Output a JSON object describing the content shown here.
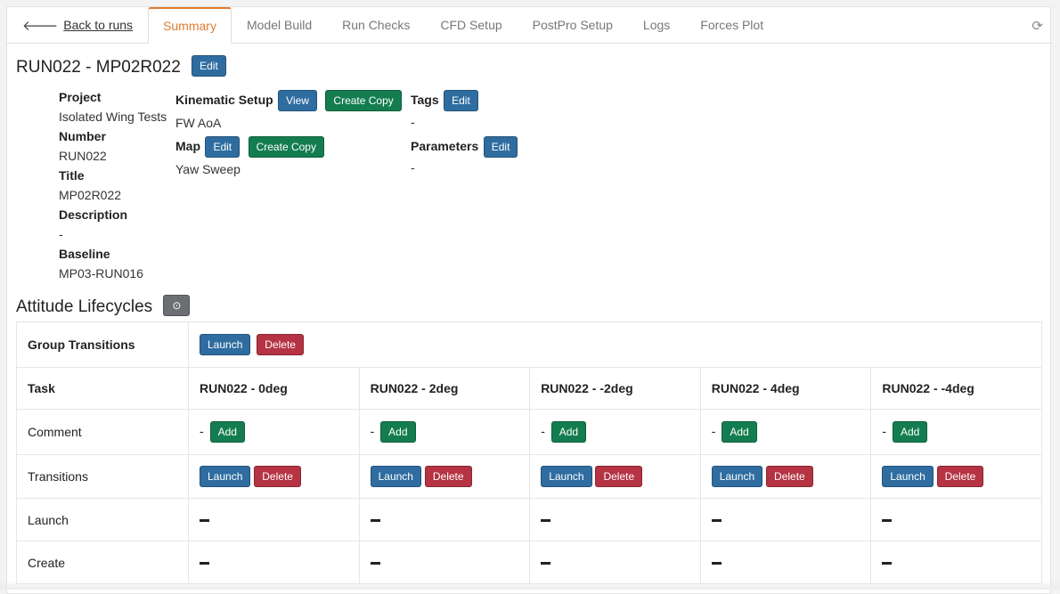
{
  "nav": {
    "back_label": "Back to runs",
    "tabs": [
      "Summary",
      "Model Build",
      "Run Checks",
      "CFD Setup",
      "PostPro Setup",
      "Logs",
      "Forces Plot"
    ],
    "active_tab": "Summary"
  },
  "run": {
    "title": "RUN022 - MP02R022",
    "edit_label": "Edit",
    "fields": [
      {
        "label": "Project",
        "value": "Isolated Wing Tests"
      },
      {
        "label": "Number",
        "value": "RUN022"
      },
      {
        "label": "Title",
        "value": "MP02R022"
      },
      {
        "label": "Description",
        "value": "-"
      },
      {
        "label": "Baseline",
        "value": "MP03-RUN016"
      }
    ],
    "kinematic_setup": {
      "label": "Kinematic Setup",
      "value": "FW AoA",
      "view_label": "View",
      "copy_label": "Create Copy"
    },
    "map": {
      "label": "Map",
      "value": "Yaw Sweep",
      "edit_label": "Edit",
      "copy_label": "Create Copy"
    },
    "tags": {
      "label": "Tags",
      "value": "-",
      "edit_label": "Edit"
    },
    "parameters": {
      "label": "Parameters",
      "value": "-",
      "edit_label": "Edit"
    }
  },
  "lifecycles": {
    "title": "Attitude Lifecycles",
    "group_transitions_label": "Group Transitions",
    "launch_label": "Launch",
    "delete_label": "Delete",
    "add_label": "Add",
    "row_labels": {
      "task": "Task",
      "comment": "Comment",
      "transitions": "Transitions",
      "launch": "Launch",
      "create": "Create"
    },
    "tasks": [
      {
        "name": "RUN022 - 0deg",
        "comment": "-"
      },
      {
        "name": "RUN022 - 2deg",
        "comment": "-"
      },
      {
        "name": "RUN022 - -2deg",
        "comment": "-"
      },
      {
        "name": "RUN022 - 4deg",
        "comment": "-"
      },
      {
        "name": "RUN022 - -4deg",
        "comment": "-"
      }
    ]
  },
  "colors": {
    "accent": "#e07b2d",
    "primary": "#2f6da0",
    "success": "#147d4f",
    "danger": "#b53343"
  }
}
